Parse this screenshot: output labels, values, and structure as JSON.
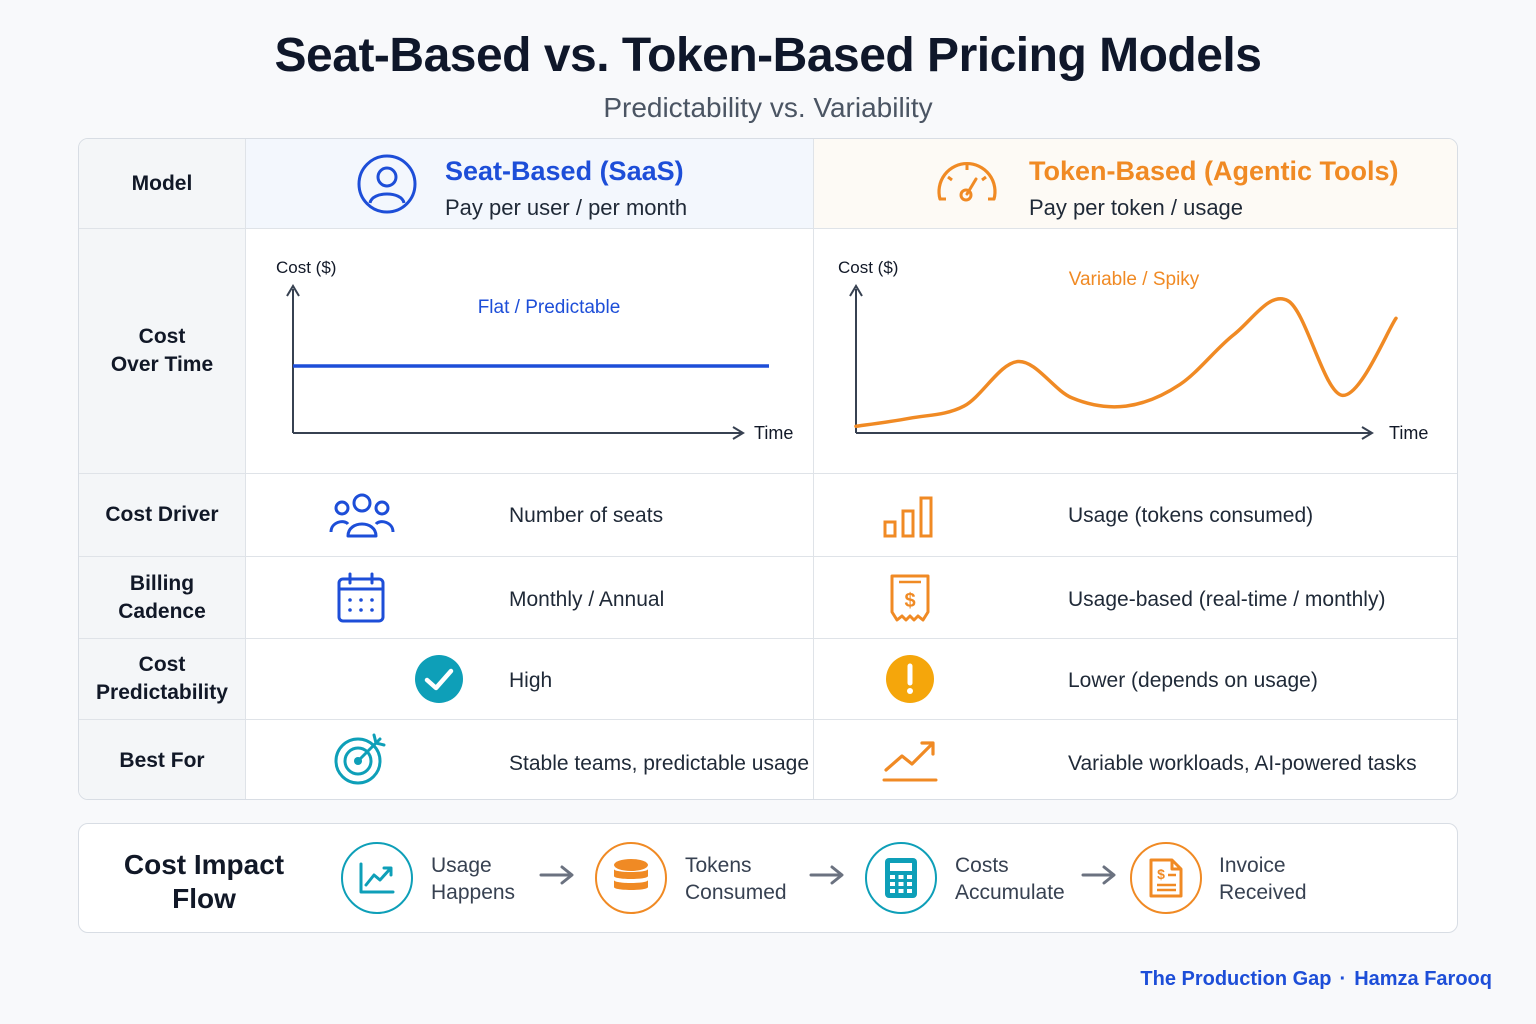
{
  "title": "Seat-Based vs. Token-Based Pricing Models",
  "subtitle": "Predictability vs. Variability",
  "colors": {
    "seat": "#1d4ed8",
    "token": "#f08a24",
    "teal": "#0e9fb8",
    "amber": "#f5a60b"
  },
  "header": {
    "label": "Model",
    "seat": {
      "title": "Seat-Based (SaaS)",
      "sub": "Pay per user / per month",
      "icon": "user-circle-icon"
    },
    "token": {
      "title": "Token-Based (Agentic Tools)",
      "sub": "Pay per token / usage",
      "icon": "gauge-icon"
    }
  },
  "cost_over_time": {
    "label": "Cost\nOver Time",
    "seat_chart": {
      "ylabel": "Cost ($)",
      "xlabel": "Time",
      "annotation": "Flat / Predictable"
    },
    "token_chart": {
      "ylabel": "Cost ($)",
      "xlabel": "Time",
      "annotation": "Variable / Spiky"
    }
  },
  "chart_data": [
    {
      "type": "line",
      "title": "",
      "xlabel": "Time",
      "ylabel": "Cost ($)",
      "annotation": "Flat / Predictable",
      "x": [
        0,
        1,
        2,
        3,
        4,
        5,
        6,
        7,
        8,
        9,
        10
      ],
      "series": [
        {
          "values": [
            50,
            50,
            50,
            50,
            50,
            50,
            50,
            50,
            50,
            50,
            50
          ]
        }
      ],
      "ylim": [
        0,
        100
      ],
      "grid": false
    },
    {
      "type": "line",
      "title": "",
      "xlabel": "Time",
      "ylabel": "Cost ($)",
      "annotation": "Variable / Spiky",
      "x": [
        0,
        1,
        2,
        3,
        4,
        5,
        6,
        7,
        8,
        9,
        10
      ],
      "series": [
        {
          "values": [
            2,
            8,
            17,
            50,
            23,
            17,
            33,
            70,
            95,
            25,
            82
          ]
        }
      ],
      "ylim": [
        0,
        100
      ],
      "grid": false
    }
  ],
  "rows": [
    {
      "label": "Cost Driver",
      "seat": {
        "text": "Number of seats",
        "icon": "users-icon"
      },
      "token": {
        "text": "Usage (tokens consumed)",
        "icon": "bar-chart-icon"
      }
    },
    {
      "label": "Billing\nCadence",
      "seat": {
        "text": "Monthly / Annual",
        "icon": "calendar-icon"
      },
      "token": {
        "text": "Usage-based (real-time / monthly)",
        "icon": "receipt-icon"
      }
    },
    {
      "label": "Cost\nPredictability",
      "seat": {
        "text": "High",
        "icon": "check-circle-icon"
      },
      "token": {
        "text": "Lower (depends on usage)",
        "icon": "alert-circle-icon"
      }
    },
    {
      "label": "Best For",
      "seat": {
        "text": "Stable teams, predictable usage",
        "icon": "target-icon"
      },
      "token": {
        "text": "Variable workloads, AI-powered tasks",
        "icon": "trend-up-icon"
      }
    }
  ],
  "flow": {
    "label": "Cost Impact\nFlow",
    "steps": [
      {
        "text": "Usage\nHappens",
        "icon": "line-chart-icon"
      },
      {
        "text": "Tokens\nConsumed",
        "icon": "database-icon"
      },
      {
        "text": "Costs\nAccumulate",
        "icon": "calculator-icon"
      },
      {
        "text": "Invoice\nReceived",
        "icon": "invoice-icon"
      }
    ]
  },
  "footer": {
    "brand": "The Production Gap",
    "author": "Hamza Farooq",
    "separator": "·"
  }
}
